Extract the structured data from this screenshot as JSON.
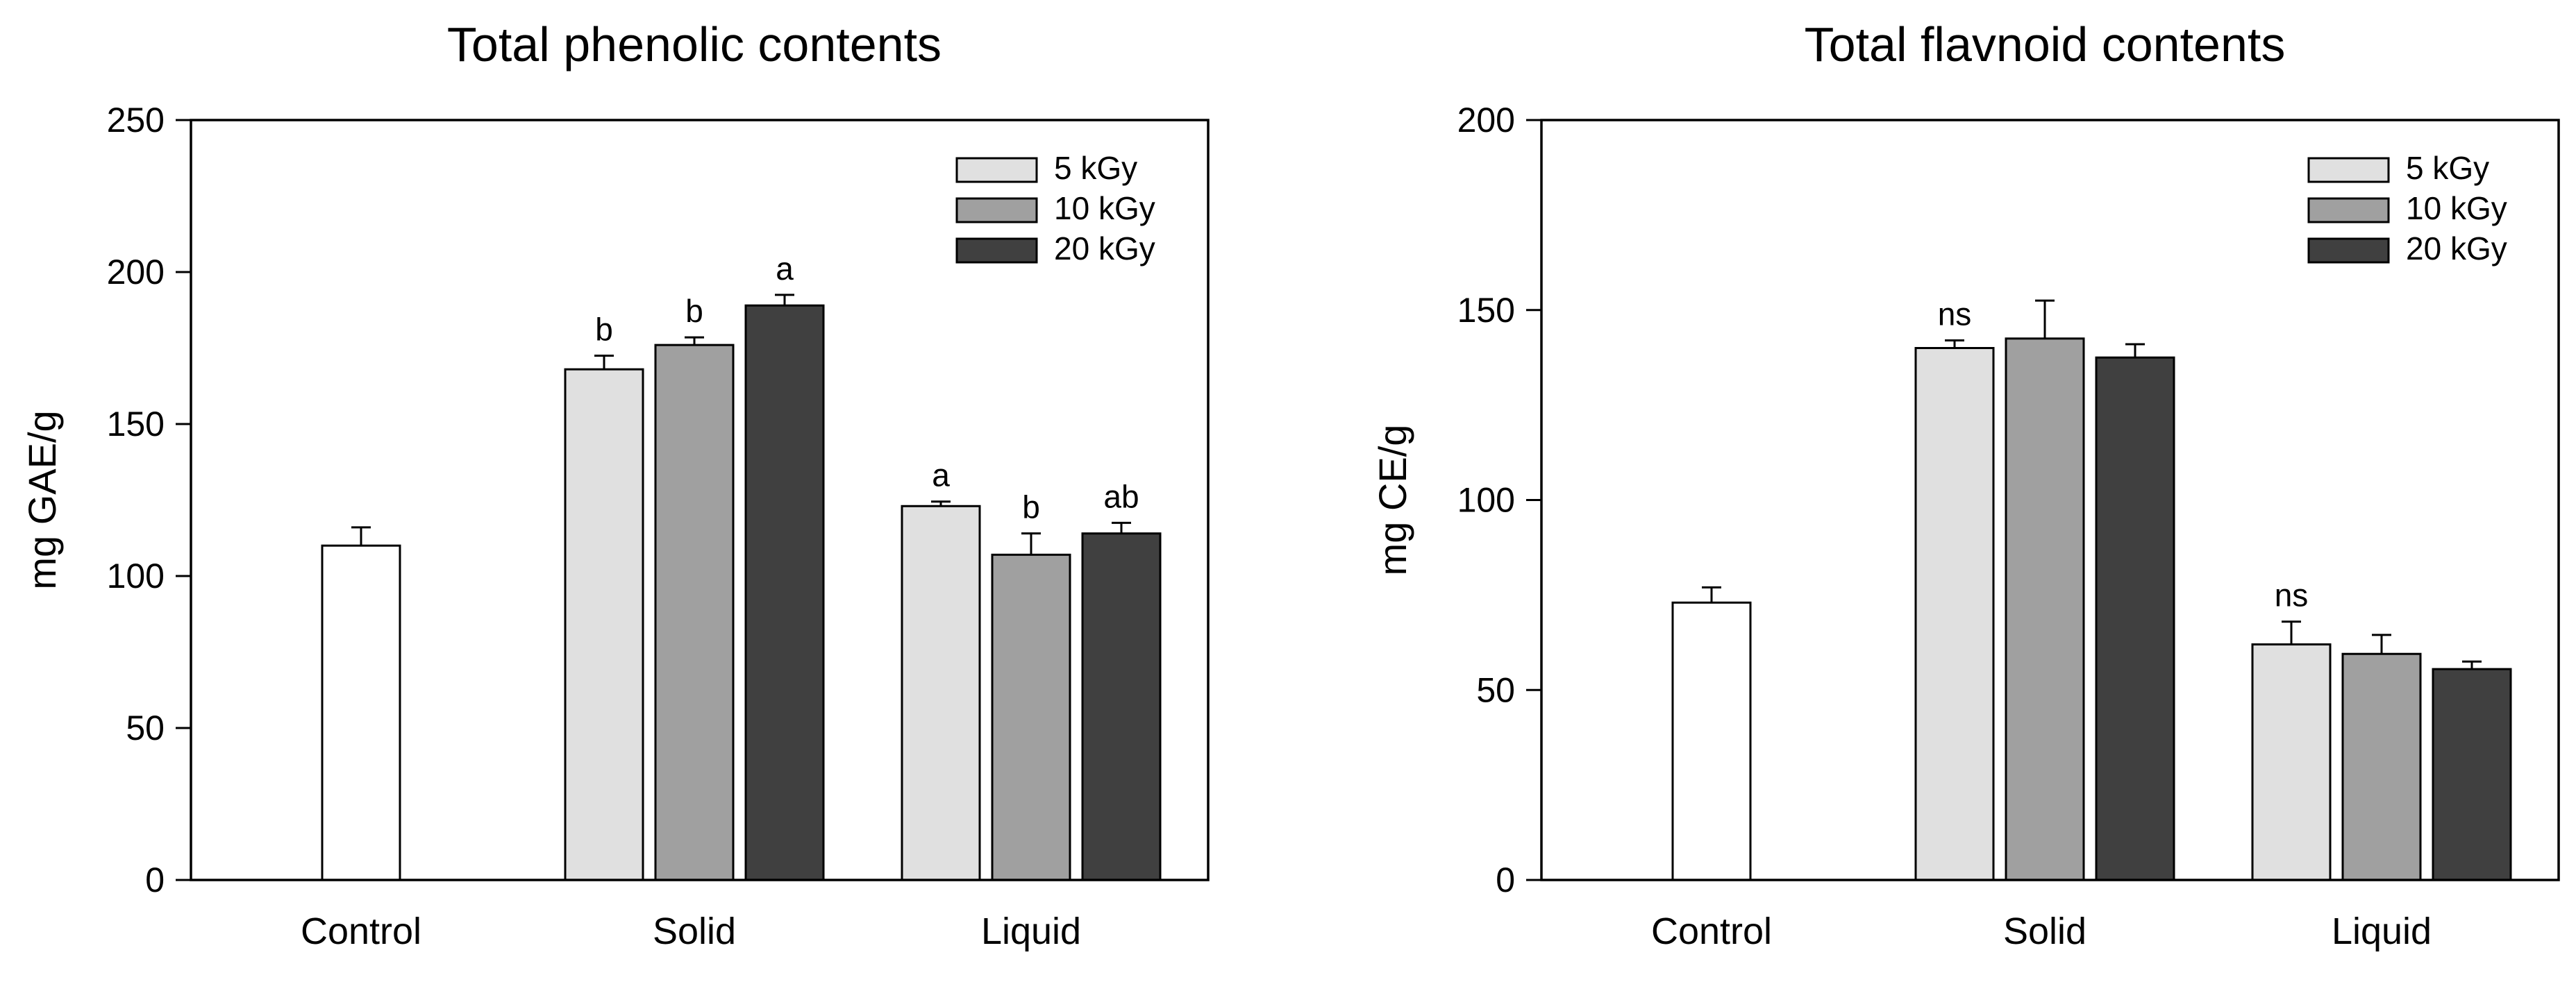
{
  "chart_data": [
    {
      "type": "bar",
      "title": "Total phenolic contents",
      "xlabel": "",
      "ylabel": "mg GAE/g",
      "ylim": [
        0,
        250
      ],
      "yticks": [
        0,
        50,
        100,
        150,
        200,
        250
      ],
      "grid": false,
      "legend_position": "top-right",
      "categories": [
        "Control",
        "Solid",
        "Liquid"
      ],
      "control": {
        "name": "Control",
        "value": 110,
        "error": 6
      },
      "series": [
        {
          "name": "5 kGy",
          "color": "#e0e0e0",
          "values": [
            null,
            168,
            123
          ],
          "errors": [
            null,
            4.5,
            1.5
          ],
          "labels": [
            null,
            "b",
            "a"
          ]
        },
        {
          "name": "10 kGy",
          "color": "#a0a0a0",
          "values": [
            null,
            176,
            107
          ],
          "errors": [
            null,
            2.5,
            7
          ],
          "labels": [
            null,
            "b",
            "b"
          ]
        },
        {
          "name": "20 kGy",
          "color": "#404040",
          "values": [
            null,
            189,
            114
          ],
          "errors": [
            null,
            3.5,
            3.5
          ],
          "labels": [
            null,
            "a",
            "ab"
          ]
        }
      ]
    },
    {
      "type": "bar",
      "title": "Total flavnoid contents",
      "xlabel": "",
      "ylabel": "mg CE/g",
      "ylim": [
        0,
        200
      ],
      "yticks": [
        0,
        50,
        100,
        150,
        200
      ],
      "grid": false,
      "legend_position": "top-right",
      "categories": [
        "Control",
        "Solid",
        "Liquid"
      ],
      "control": {
        "name": "Control",
        "value": 73,
        "error": 4
      },
      "series": [
        {
          "name": "5 kGy",
          "color": "#e0e0e0",
          "values": [
            null,
            140,
            62
          ],
          "errors": [
            null,
            2,
            6
          ],
          "labels": [
            null,
            "ns",
            "ns"
          ]
        },
        {
          "name": "10 kGy",
          "color": "#a0a0a0",
          "values": [
            null,
            142.5,
            59.5
          ],
          "errors": [
            null,
            10,
            5
          ],
          "labels": [
            null,
            "",
            ""
          ]
        },
        {
          "name": "20 kGy",
          "color": "#404040",
          "values": [
            null,
            137.5,
            55.5
          ],
          "errors": [
            null,
            3.5,
            2
          ],
          "labels": [
            null,
            "",
            ""
          ]
        }
      ]
    }
  ]
}
